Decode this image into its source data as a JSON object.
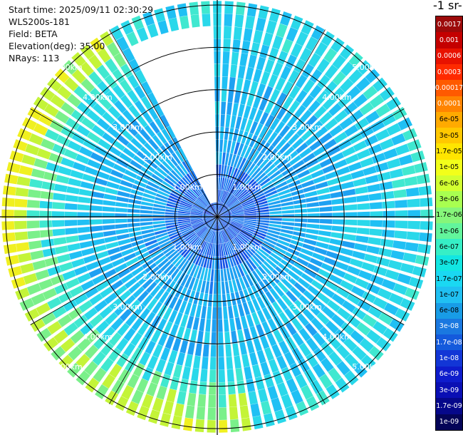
{
  "header": {
    "start_time": "Start time: 2025/09/11 02:30:29",
    "instrument": "WLS200s-181",
    "field": "Field: BETA",
    "elevation": "Elevation(deg): 35.00",
    "nrays": "NRays: 113"
  },
  "colorbar": {
    "title": "-1 sr-",
    "ticks": [
      "0.0017",
      "0.001",
      "0.0006",
      "0.0003",
      "0.00017",
      "0.0001",
      "6e-05",
      "3e-05",
      "1.7e-05",
      "1e-05",
      "6e-06",
      "3e-06",
      "1.7e-06",
      "1e-06",
      "6e-07",
      "3e-07",
      "1.7e-07",
      "1e-07",
      "6e-08",
      "3e-08",
      "1.7e-08",
      "1e-08",
      "6e-09",
      "3e-09",
      "1.7e-09",
      "1e-09"
    ],
    "colors": [
      "#9c0a0a",
      "#c40000",
      "#e81200",
      "#ff2a00",
      "#ff5a00",
      "#ff8400",
      "#ffaa00",
      "#ffc800",
      "#ffe500",
      "#f2ff1a",
      "#d2ff30",
      "#a8ff50",
      "#86f67a",
      "#62f59c",
      "#36efc6",
      "#12e6e2",
      "#1ad8f2",
      "#20c0f2",
      "#189ce6",
      "#1a78e0",
      "#145adc",
      "#1236d6",
      "#0e1ccc",
      "#0a0fb4",
      "#06088a",
      "#040458"
    ]
  },
  "chart_data": {
    "type": "ppi",
    "field": "BETA",
    "elevation_deg": 35.0,
    "nrays": 113,
    "range_ring_labels": [
      "1.00km",
      "2.00km",
      "3.00km",
      "4.00km",
      "5.00km"
    ],
    "range_rings_km": [
      1,
      2,
      3,
      4,
      5
    ],
    "max_range_km": 5.1,
    "gap_azimuth_deg": [
      332,
      358
    ],
    "gap_range_km": [
      0.35,
      4.65
    ],
    "colorbar_range": [
      1e-09,
      0.0017
    ],
    "colorbar_scale": "log"
  }
}
